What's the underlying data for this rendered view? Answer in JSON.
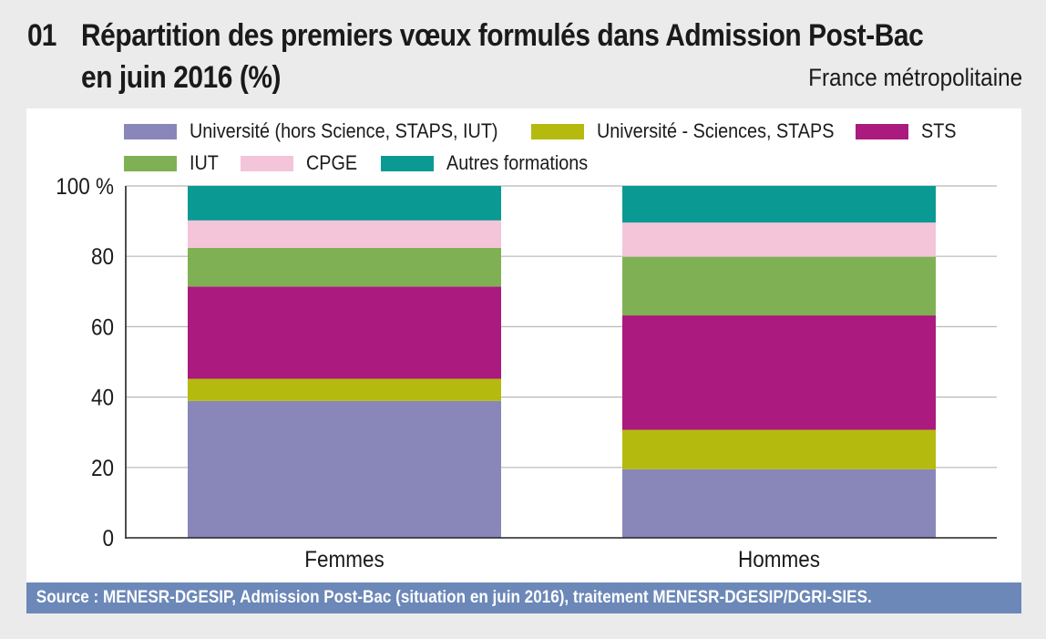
{
  "header": {
    "number": "01",
    "title_line1": "Répartition des premiers vœux formulés dans Admission Post-Bac",
    "title_line2": "en juin 2016 (%)",
    "region": "France métropolitaine"
  },
  "source": "Source  :  MENESR-DGESIP, Admission Post-Bac (situation en juin 2016), traitement MENESR-DGESIP/DGRI-SIES.",
  "chart_data": {
    "type": "bar",
    "stacked": true,
    "title": "Répartition des premiers vœux formulés dans Admission Post-Bac en juin 2016 (%)",
    "xlabel": "",
    "ylabel": "",
    "ylim": [
      0,
      100
    ],
    "yticks": [
      0,
      20,
      40,
      60,
      80,
      100
    ],
    "ytick_labels": [
      "0",
      "20",
      "40",
      "60",
      "80",
      "100 %"
    ],
    "grid": true,
    "legend_position": "top",
    "categories": [
      "Femmes",
      "Hommes"
    ],
    "series": [
      {
        "name": "Université (hors Science, STAPS, IUT)",
        "color": "#8986ba",
        "values": [
          38.9,
          19.5
        ]
      },
      {
        "name": "Université - Sciences, STAPS",
        "color": "#b5ba0e",
        "values": [
          6.3,
          11.2
        ]
      },
      {
        "name": "STS",
        "color": "#ab1a7f",
        "values": [
          26.2,
          32.5
        ]
      },
      {
        "name": "IUT",
        "color": "#7fb154",
        "values": [
          11.0,
          16.7
        ]
      },
      {
        "name": "CPGE",
        "color": "#f4c4d9",
        "values": [
          7.8,
          9.7
        ]
      },
      {
        "name": "Autres formations",
        "color": "#0b9a93",
        "values": [
          9.8,
          10.4
        ]
      }
    ]
  }
}
